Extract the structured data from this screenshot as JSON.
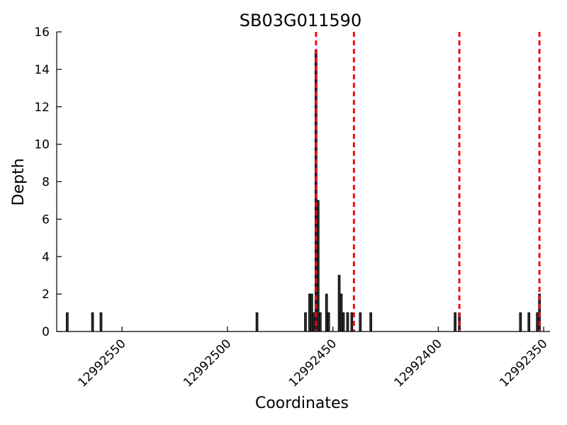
{
  "chart_data": {
    "type": "bar",
    "title": "SB03G011590",
    "xlabel": "Coordinates",
    "ylabel": "Depth",
    "x_axis_reversed": true,
    "xlim": [
      12992581,
      12992347
    ],
    "ylim": [
      0,
      16
    ],
    "y_ticks": [
      0,
      2,
      4,
      6,
      8,
      10,
      12,
      14,
      16
    ],
    "x_ticks": [
      12992550,
      12992500,
      12992450,
      12992400,
      12992350
    ],
    "bar_color": "#333333",
    "bar_edge_color": "#000000",
    "grid": false,
    "series": [
      {
        "values": [
          {
            "x": 12992576,
            "y": 1
          },
          {
            "x": 12992564,
            "y": 1
          },
          {
            "x": 12992560,
            "y": 1
          },
          {
            "x": 12992486,
            "y": 1
          },
          {
            "x": 12992463,
            "y": 1
          },
          {
            "x": 12992461,
            "y": 2
          },
          {
            "x": 12992460,
            "y": 2
          },
          {
            "x": 12992459,
            "y": 1
          },
          {
            "x": 12992458,
            "y": 15
          },
          {
            "x": 12992457,
            "y": 7
          },
          {
            "x": 12992456,
            "y": 1
          },
          {
            "x": 12992453,
            "y": 2
          },
          {
            "x": 12992452,
            "y": 1
          },
          {
            "x": 12992447,
            "y": 3
          },
          {
            "x": 12992446,
            "y": 2
          },
          {
            "x": 12992445,
            "y": 1
          },
          {
            "x": 12992443,
            "y": 1
          },
          {
            "x": 12992441,
            "y": 1
          },
          {
            "x": 12992437,
            "y": 1
          },
          {
            "x": 12992432,
            "y": 1
          },
          {
            "x": 12992392,
            "y": 1
          },
          {
            "x": 12992390,
            "y": 1
          },
          {
            "x": 12992361,
            "y": 1
          },
          {
            "x": 12992357,
            "y": 1
          },
          {
            "x": 12992353,
            "y": 1
          },
          {
            "x": 12992352,
            "y": 2
          }
        ]
      }
    ],
    "reference_lines": {
      "orientation": "vertical",
      "style": "dashed",
      "color": "#ee1111",
      "x": [
        12992458,
        12992440,
        12992390,
        12992352
      ]
    }
  }
}
